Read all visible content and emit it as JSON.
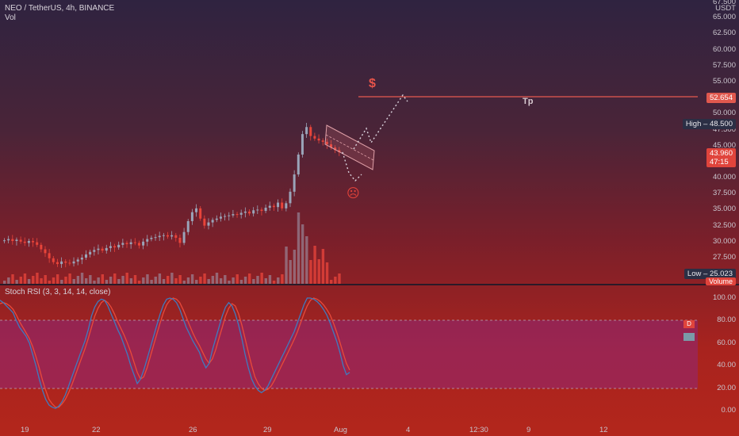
{
  "header": {
    "symbol_line": "NEO / TetherUS, 4h, BINANCE",
    "vol_label": "Vol",
    "rsi_label": "Stoch RSI (3, 3, 14, 14, close)"
  },
  "price_axis": {
    "currency": "USDT",
    "ticks": [
      "67.500",
      "65.000",
      "62.500",
      "60.000",
      "57.500",
      "55.000",
      "52.500",
      "50.000",
      "47.500",
      "45.000",
      "42.500",
      "40.000",
      "37.500",
      "35.000",
      "32.500",
      "30.000",
      "27.500"
    ]
  },
  "markers": {
    "target_price": "52.654",
    "high_label": "High",
    "high_value": "48.500",
    "last_price": "43.960",
    "countdown": "47:15",
    "low_label": "Low",
    "low_value": "25.023",
    "volume_label": "Volume"
  },
  "annotations": {
    "tp_label": "Tp",
    "dollar_sign": "$",
    "sad_face": "☹"
  },
  "rsi_axis": {
    "ticks": [
      "100.00",
      "80.00",
      "60.00",
      "40.00",
      "20.00",
      "0.00"
    ],
    "d_label": "D",
    "k_label": "K"
  },
  "time_axis": {
    "labels": [
      "19",
      "22",
      "26",
      "29",
      "Aug",
      "4",
      "12:30",
      "9",
      "12"
    ]
  },
  "colors": {
    "up": "#9aa4b8",
    "down": "#e8443a",
    "target_line": "#e65a4f",
    "rsi_k": "#3f7bbf",
    "rsi_d": "#e84a3a"
  },
  "chart_data": {
    "type": "candlestick",
    "title": "NEO / TetherUS, 4h, BINANCE",
    "y_range": [
      25.023,
      67.5
    ],
    "closes": [
      30.2,
      30.4,
      30.1,
      30.3,
      30.0,
      29.8,
      30.1,
      29.9,
      29.5,
      28.8,
      28.2,
      27.4,
      26.8,
      26.5,
      26.9,
      26.7,
      26.6,
      26.9,
      27.2,
      27.5,
      28.0,
      28.4,
      28.7,
      28.9,
      28.6,
      29.0,
      29.3,
      29.1,
      29.5,
      29.8,
      29.6,
      29.9,
      29.8,
      29.4,
      30.0,
      30.4,
      30.6,
      30.7,
      30.9,
      31.0,
      30.8,
      31.0,
      30.6,
      29.8,
      31.5,
      33.2,
      34.6,
      35.2,
      33.6,
      32.5,
      33.0,
      33.4,
      33.6,
      33.9,
      34.0,
      34.1,
      34.3,
      34.2,
      34.5,
      34.7,
      34.4,
      34.9,
      35.0,
      34.8,
      35.3,
      35.6,
      35.4,
      36.1,
      35.2,
      36.0,
      37.8,
      40.5,
      43.6,
      46.8,
      47.9,
      46.5,
      46.1,
      45.8,
      45.6,
      45.2,
      44.7,
      44.3,
      43.96
    ],
    "high": 48.5,
    "low": 25.023,
    "target": 52.654,
    "stoch_rsi": {
      "k": [
        98,
        96,
        93,
        90,
        87,
        80,
        74,
        70,
        66,
        60,
        50,
        40,
        28,
        18,
        10,
        5,
        3,
        2,
        4,
        8,
        14,
        22,
        30,
        38,
        46,
        54,
        62,
        72,
        84,
        92,
        97,
        99,
        98,
        93,
        86,
        79,
        72,
        66,
        58,
        50,
        40,
        32,
        24,
        28,
        36,
        46,
        56,
        66,
        76,
        86,
        94,
        99,
        100,
        99,
        96,
        90,
        82,
        74,
        68,
        62,
        57,
        52,
        44,
        38,
        42,
        54,
        64,
        74,
        84,
        92,
        96,
        93,
        86,
        76,
        64,
        50,
        38,
        28,
        22,
        18,
        16,
        18,
        22,
        28,
        34,
        40,
        46,
        52,
        58,
        64,
        70,
        78,
        86,
        94,
        100,
        100,
        99,
        97,
        94,
        90,
        85,
        78,
        70,
        62,
        52,
        40,
        32,
        34
      ],
      "d": [
        95,
        96,
        95,
        93,
        90,
        85,
        79,
        74,
        69,
        64,
        57,
        48,
        38,
        27,
        18,
        10,
        6,
        3,
        3,
        6,
        10,
        16,
        23,
        31,
        39,
        47,
        55,
        64,
        74,
        84,
        91,
        96,
        98,
        96,
        92,
        86,
        79,
        73,
        67,
        60,
        52,
        43,
        34,
        28,
        30,
        38,
        48,
        58,
        68,
        78,
        87,
        94,
        98,
        100,
        99,
        96,
        90,
        83,
        76,
        69,
        63,
        58,
        52,
        46,
        42,
        46,
        54,
        64,
        74,
        84,
        91,
        95,
        93,
        86,
        76,
        64,
        52,
        40,
        30,
        24,
        20,
        18,
        19,
        22,
        27,
        33,
        39,
        45,
        51,
        57,
        63,
        70,
        78,
        86,
        93,
        98,
        100,
        99,
        97,
        94,
        90,
        85,
        78,
        70,
        61,
        51,
        42,
        36
      ]
    },
    "rsi_levels": [
      80,
      20
    ]
  }
}
